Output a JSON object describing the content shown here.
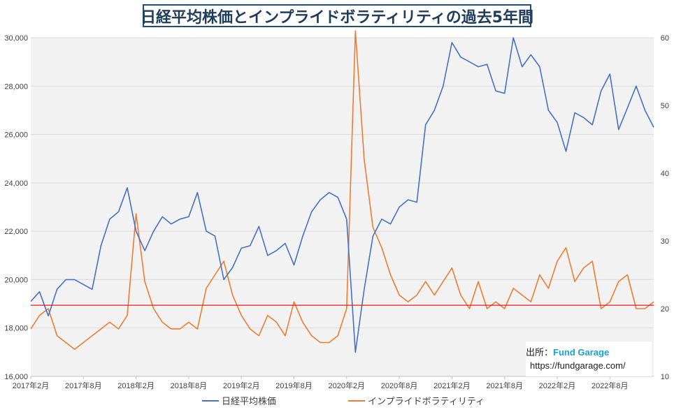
{
  "chart_data": {
    "type": "line",
    "title": "日経平均株価とインプライドボラティリティの過去5年間",
    "left_axis": {
      "ylim": [
        16000,
        30000
      ],
      "ticks": [
        16000,
        18000,
        20000,
        22000,
        24000,
        26000,
        28000,
        30000
      ],
      "tick_labels": [
        "16,000",
        "18,000",
        "20,000",
        "22,000",
        "24,000",
        "26,000",
        "28,000",
        "30,000"
      ]
    },
    "right_axis": {
      "ylim": [
        10,
        60
      ],
      "ticks": [
        10,
        20,
        30,
        40,
        50,
        60
      ],
      "tick_labels": [
        "10",
        "20",
        "30",
        "40",
        "50",
        "60"
      ]
    },
    "x_axis": {
      "tick_labels": [
        "2017年2月",
        "2017年8月",
        "2018年2月",
        "2018年8月",
        "2019年2月",
        "2019年8月",
        "2020年2月",
        "2020年8月",
        "2021年2月",
        "2021年8月",
        "2022年2月",
        "2022年8月"
      ]
    },
    "reference_line": {
      "axis": "right",
      "value": 20.5,
      "color": "#e02020"
    },
    "grid": "horizontal",
    "legend_position": "bottom",
    "series": [
      {
        "name": "日経平均株価",
        "axis": "left",
        "color": "#4472c4",
        "points": [
          [
            "2017-02",
            19100
          ],
          [
            "2017-03",
            19500
          ],
          [
            "2017-04",
            18500
          ],
          [
            "2017-05",
            19600
          ],
          [
            "2017-06",
            20000
          ],
          [
            "2017-07",
            20000
          ],
          [
            "2017-08",
            19800
          ],
          [
            "2017-09",
            19600
          ],
          [
            "2017-10",
            21400
          ],
          [
            "2017-11",
            22500
          ],
          [
            "2017-12",
            22800
          ],
          [
            "2018-01",
            23800
          ],
          [
            "2018-02",
            22000
          ],
          [
            "2018-03",
            21200
          ],
          [
            "2018-04",
            22000
          ],
          [
            "2018-05",
            22600
          ],
          [
            "2018-06",
            22300
          ],
          [
            "2018-07",
            22500
          ],
          [
            "2018-08",
            22600
          ],
          [
            "2018-09",
            23600
          ],
          [
            "2018-10",
            22000
          ],
          [
            "2018-11",
            21800
          ],
          [
            "2018-12",
            20000
          ],
          [
            "2019-01",
            20500
          ],
          [
            "2019-02",
            21300
          ],
          [
            "2019-03",
            21400
          ],
          [
            "2019-04",
            22200
          ],
          [
            "2019-05",
            21000
          ],
          [
            "2019-06",
            21200
          ],
          [
            "2019-07",
            21500
          ],
          [
            "2019-08",
            20600
          ],
          [
            "2019-09",
            21800
          ],
          [
            "2019-10",
            22800
          ],
          [
            "2019-11",
            23300
          ],
          [
            "2019-12",
            23600
          ],
          [
            "2020-01",
            23400
          ],
          [
            "2020-02",
            22500
          ],
          [
            "2020-03",
            17000
          ],
          [
            "2020-04",
            19600
          ],
          [
            "2020-05",
            21800
          ],
          [
            "2020-06",
            22500
          ],
          [
            "2020-07",
            22300
          ],
          [
            "2020-08",
            23000
          ],
          [
            "2020-09",
            23300
          ],
          [
            "2020-10",
            23200
          ],
          [
            "2020-11",
            26400
          ],
          [
            "2020-12",
            27000
          ],
          [
            "2021-01",
            28000
          ],
          [
            "2021-02",
            29800
          ],
          [
            "2021-03",
            29200
          ],
          [
            "2021-04",
            29000
          ],
          [
            "2021-05",
            28800
          ],
          [
            "2021-06",
            28900
          ],
          [
            "2021-07",
            27800
          ],
          [
            "2021-08",
            27700
          ],
          [
            "2021-09",
            30000
          ],
          [
            "2021-10",
            28800
          ],
          [
            "2021-11",
            29300
          ],
          [
            "2021-12",
            28800
          ],
          [
            "2022-01",
            27000
          ],
          [
            "2022-02",
            26500
          ],
          [
            "2022-03",
            25300
          ],
          [
            "2022-04",
            26900
          ],
          [
            "2022-05",
            26700
          ],
          [
            "2022-06",
            26400
          ],
          [
            "2022-07",
            27800
          ],
          [
            "2022-08",
            28500
          ],
          [
            "2022-09",
            26200
          ],
          [
            "2022-10",
            27100
          ],
          [
            "2022-11",
            28000
          ],
          [
            "2022-12",
            27000
          ],
          [
            "2023-01",
            26300
          ]
        ]
      },
      {
        "name": "インプライドボラティリティ",
        "axis": "right",
        "color": "#ed7d31",
        "points": [
          [
            "2017-02",
            17
          ],
          [
            "2017-03",
            19
          ],
          [
            "2017-04",
            20
          ],
          [
            "2017-05",
            16
          ],
          [
            "2017-06",
            15
          ],
          [
            "2017-07",
            14
          ],
          [
            "2017-08",
            15
          ],
          [
            "2017-09",
            16
          ],
          [
            "2017-10",
            17
          ],
          [
            "2017-11",
            18
          ],
          [
            "2017-12",
            17
          ],
          [
            "2018-01",
            19
          ],
          [
            "2018-02",
            34
          ],
          [
            "2018-03",
            24
          ],
          [
            "2018-04",
            20
          ],
          [
            "2018-05",
            18
          ],
          [
            "2018-06",
            17
          ],
          [
            "2018-07",
            17
          ],
          [
            "2018-08",
            18
          ],
          [
            "2018-09",
            17
          ],
          [
            "2018-10",
            23
          ],
          [
            "2018-11",
            25
          ],
          [
            "2018-12",
            27
          ],
          [
            "2019-01",
            22
          ],
          [
            "2019-02",
            19
          ],
          [
            "2019-03",
            17
          ],
          [
            "2019-04",
            16
          ],
          [
            "2019-05",
            19
          ],
          [
            "2019-06",
            18
          ],
          [
            "2019-07",
            16
          ],
          [
            "2019-08",
            21
          ],
          [
            "2019-09",
            18
          ],
          [
            "2019-10",
            16
          ],
          [
            "2019-11",
            15
          ],
          [
            "2019-12",
            15
          ],
          [
            "2020-01",
            16
          ],
          [
            "2020-02",
            20
          ],
          [
            "2020-03",
            61
          ],
          [
            "2020-04",
            42
          ],
          [
            "2020-05",
            32
          ],
          [
            "2020-06",
            29
          ],
          [
            "2020-07",
            25
          ],
          [
            "2020-08",
            22
          ],
          [
            "2020-09",
            21
          ],
          [
            "2020-10",
            22
          ],
          [
            "2020-11",
            24
          ],
          [
            "2020-12",
            22
          ],
          [
            "2021-01",
            24
          ],
          [
            "2021-02",
            26
          ],
          [
            "2021-03",
            22
          ],
          [
            "2021-04",
            20
          ],
          [
            "2021-05",
            24
          ],
          [
            "2021-06",
            20
          ],
          [
            "2021-07",
            21
          ],
          [
            "2021-08",
            20
          ],
          [
            "2021-09",
            23
          ],
          [
            "2021-10",
            22
          ],
          [
            "2021-11",
            21
          ],
          [
            "2021-12",
            25
          ],
          [
            "2022-01",
            23
          ],
          [
            "2022-02",
            27
          ],
          [
            "2022-03",
            29
          ],
          [
            "2022-04",
            24
          ],
          [
            "2022-05",
            26
          ],
          [
            "2022-06",
            27
          ],
          [
            "2022-07",
            20
          ],
          [
            "2022-08",
            21
          ],
          [
            "2022-09",
            24
          ],
          [
            "2022-10",
            25
          ],
          [
            "2022-11",
            20
          ],
          [
            "2022-12",
            20
          ],
          [
            "2023-01",
            21
          ]
        ]
      }
    ]
  },
  "source": {
    "label": "出所：",
    "brand": "Fund Garage",
    "url": "https://fundgarage.com/"
  }
}
